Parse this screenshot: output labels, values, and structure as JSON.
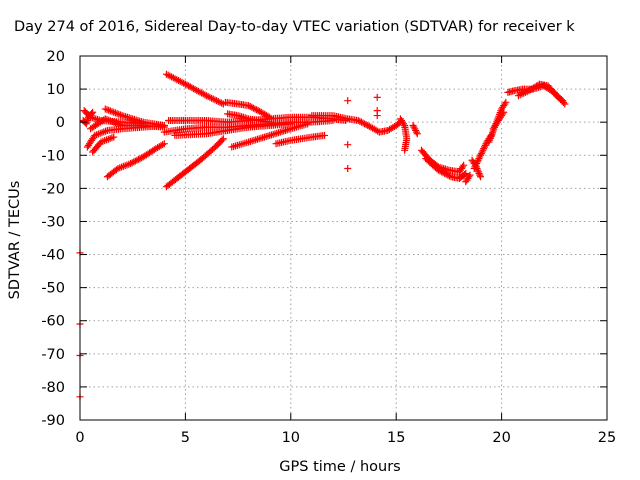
{
  "chart_data": {
    "type": "scatter",
    "title": "Day 274 of 2016, Sidereal Day-to-day VTEC variation (SDTVAR) for receiver k",
    "xlabel": "GPS time / hours",
    "ylabel": "SDTVAR / TECUs",
    "xlim": [
      0,
      25
    ],
    "ylim": [
      -90,
      20
    ],
    "x_ticks": [
      0,
      5,
      10,
      15,
      20,
      25
    ],
    "y_ticks": [
      20,
      10,
      0,
      -10,
      -20,
      -30,
      -40,
      -50,
      -60,
      -70,
      -80,
      -90
    ],
    "grid": true,
    "legend": "none",
    "marker": "+",
    "color": "#ff0000",
    "series": [
      {
        "arcs": [
          [
            [
              4.1,
              14.5
            ],
            [
              5.0,
              11.5
            ],
            [
              6.0,
              8.0
            ],
            [
              6.8,
              5.5
            ]
          ],
          [
            [
              4.1,
              -19.5
            ],
            [
              4.6,
              -17.0
            ],
            [
              5.2,
              -14.0
            ],
            [
              5.8,
              -11.0
            ],
            [
              6.5,
              -7.0
            ],
            [
              6.8,
              -5.0
            ]
          ],
          [
            [
              1.3,
              -16.5
            ],
            [
              1.8,
              -14.0
            ],
            [
              2.4,
              -12.5
            ],
            [
              3.0,
              -10.5
            ],
            [
              3.6,
              -8.0
            ],
            [
              4.0,
              -6.5
            ]
          ],
          [
            [
              0.35,
              -7.5
            ],
            [
              0.7,
              -4.0
            ],
            [
              1.3,
              -2.5
            ],
            [
              2.0,
              -2.0
            ],
            [
              3.0,
              -1.5
            ],
            [
              4.0,
              -1.0
            ]
          ],
          [
            [
              0.5,
              -2.0
            ],
            [
              1.2,
              1.0
            ],
            [
              2.0,
              -1.0
            ],
            [
              3.0,
              -1.0
            ],
            [
              4.0,
              -1.5
            ]
          ],
          [
            [
              1.2,
              4.0
            ],
            [
              2.0,
              2.0
            ],
            [
              3.0,
              0.0
            ],
            [
              4.0,
              -1.0
            ]
          ],
          [
            [
              0.2,
              3.5
            ],
            [
              0.5,
              1.5
            ],
            [
              1.0,
              0.5
            ],
            [
              2.0,
              0.0
            ],
            [
              3.0,
              -0.5
            ]
          ],
          [
            [
              0.6,
              -9.0
            ],
            [
              1.0,
              -6.0
            ],
            [
              1.6,
              -4.5
            ]
          ],
          [
            [
              0.15,
              0.5
            ],
            [
              0.3,
              -0.5
            ],
            [
              0.4,
              1.5
            ],
            [
              0.6,
              3.0
            ]
          ],
          [
            [
              4.2,
              0.5
            ],
            [
              5.0,
              0.5
            ],
            [
              6.0,
              0.5
            ],
            [
              7.0,
              0.0
            ],
            [
              8.0,
              0.5
            ],
            [
              9.0,
              1.0
            ],
            [
              10.0,
              1.5
            ],
            [
              11.0,
              1.5
            ],
            [
              12.0,
              1.0
            ],
            [
              12.6,
              0.5
            ]
          ],
          [
            [
              4.0,
              -3.0
            ],
            [
              5.0,
              -2.0
            ],
            [
              6.0,
              -1.5
            ],
            [
              7.0,
              -1.5
            ],
            [
              8.0,
              -1.0
            ],
            [
              9.0,
              -0.5
            ],
            [
              10.0,
              0.0
            ],
            [
              11.0,
              0.0
            ],
            [
              12.0,
              0.5
            ]
          ],
          [
            [
              4.5,
              -4.0
            ],
            [
              6.0,
              -3.5
            ],
            [
              7.0,
              -2.5
            ],
            [
              8.0,
              -1.5
            ],
            [
              9.0,
              -1.0
            ],
            [
              10.0,
              -0.5
            ]
          ],
          [
            [
              6.9,
              6.0
            ],
            [
              7.5,
              5.5
            ],
            [
              8.0,
              5.0
            ],
            [
              8.6,
              3.0
            ],
            [
              9.0,
              1.5
            ]
          ],
          [
            [
              7.0,
              2.5
            ],
            [
              7.5,
              2.0
            ],
            [
              8.0,
              1.0
            ],
            [
              9.0,
              0.0
            ]
          ],
          [
            [
              7.2,
              -7.5
            ],
            [
              8.0,
              -6.0
            ],
            [
              9.0,
              -4.0
            ],
            [
              10.0,
              -2.0
            ],
            [
              10.8,
              -0.5
            ]
          ],
          [
            [
              9.3,
              -6.5
            ],
            [
              10.0,
              -5.5
            ],
            [
              11.0,
              -4.5
            ],
            [
              11.6,
              -4.0
            ]
          ],
          [
            [
              11.0,
              2.0
            ],
            [
              12.0,
              2.0
            ],
            [
              12.7,
              1.0
            ],
            [
              13.2,
              0.5
            ],
            [
              13.8,
              -1.5
            ],
            [
              14.2,
              -3.0
            ],
            [
              14.6,
              -2.5
            ],
            [
              15.0,
              -1.0
            ],
            [
              15.2,
              0.0
            ]
          ],
          [
            [
              15.2,
              1.0
            ],
            [
              15.4,
              -1.0
            ],
            [
              15.5,
              -5.0
            ],
            [
              15.4,
              -8.5
            ]
          ],
          [
            [
              15.8,
              -1.0
            ],
            [
              16.0,
              -3.5
            ]
          ],
          [
            [
              16.2,
              -8.5
            ],
            [
              16.6,
              -11.5
            ],
            [
              17.0,
              -13.5
            ],
            [
              17.5,
              -14.5
            ],
            [
              18.0,
              -15.0
            ],
            [
              18.2,
              -13.0
            ]
          ],
          [
            [
              16.4,
              -11.0
            ],
            [
              17.0,
              -14.5
            ],
            [
              17.6,
              -16.5
            ],
            [
              18.0,
              -17.0
            ],
            [
              18.3,
              -15.5
            ]
          ],
          [
            [
              18.3,
              -18.0
            ],
            [
              18.5,
              -16.0
            ]
          ],
          [
            [
              18.6,
              -11.5
            ],
            [
              18.8,
              -13.5
            ],
            [
              19.0,
              -16.5
            ]
          ],
          [
            [
              18.7,
              -14.0
            ],
            [
              19.0,
              -10.0
            ],
            [
              19.3,
              -6.0
            ],
            [
              19.5,
              -4.0
            ]
          ],
          [
            [
              19.4,
              -6.0
            ],
            [
              19.7,
              -1.0
            ],
            [
              20.0,
              4.0
            ],
            [
              20.2,
              6.0
            ]
          ],
          [
            [
              19.6,
              -2.0
            ],
            [
              19.9,
              1.0
            ],
            [
              20.1,
              3.0
            ]
          ],
          [
            [
              20.3,
              9.0
            ],
            [
              20.6,
              9.5
            ],
            [
              21.0,
              10.0
            ],
            [
              21.5,
              10.0
            ],
            [
              22.0,
              11.0
            ],
            [
              22.5,
              9.0
            ],
            [
              23.0,
              5.5
            ]
          ],
          [
            [
              20.8,
              8.0
            ],
            [
              21.3,
              9.5
            ],
            [
              21.8,
              11.5
            ],
            [
              22.2,
              11.0
            ],
            [
              22.6,
              8.0
            ],
            [
              22.9,
              6.5
            ]
          ]
        ],
        "points": [
          [
            12.7,
            6.5
          ],
          [
            12.7,
            -6.8
          ],
          [
            12.7,
            -14.0
          ],
          [
            14.1,
            7.5
          ],
          [
            14.1,
            3.5
          ],
          [
            14.1,
            2.0
          ],
          [
            0.0,
            -39.5
          ],
          [
            0.0,
            -61.0
          ],
          [
            0.0,
            -70.5
          ],
          [
            0.0,
            -83.0
          ]
        ]
      }
    ]
  }
}
